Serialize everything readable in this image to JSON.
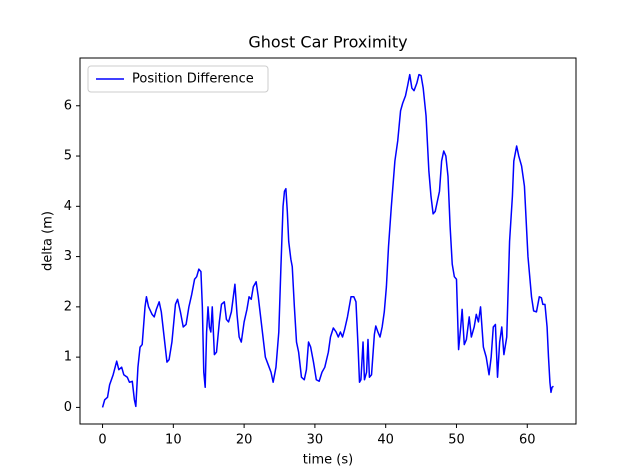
{
  "chart_data": {
    "type": "line",
    "title": "Ghost Car Proximity",
    "xlabel": "time (s)",
    "ylabel": "delta (m)",
    "x": [
      0,
      0.3,
      0.7,
      1,
      1.5,
      2,
      2.3,
      2.7,
      3,
      3.5,
      3.8,
      4.2,
      4.5,
      4.7,
      5,
      5.3,
      5.6,
      6,
      6.2,
      6.5,
      7,
      7.3,
      7.6,
      8,
      8.3,
      8.7,
      9.1,
      9.4,
      9.8,
      10.3,
      10.6,
      11,
      11.4,
      11.8,
      12.2,
      12.6,
      13,
      13.3,
      13.6,
      13.9,
      14.1,
      14.3,
      14.5,
      14.7,
      14.9,
      15.1,
      15.3,
      15.5,
      15.8,
      16.1,
      16.5,
      16.8,
      17.2,
      17.5,
      17.8,
      18.2,
      18.7,
      19,
      19.3,
      19.6,
      20,
      20.4,
      20.7,
      21,
      21.3,
      21.7,
      22,
      22.5,
      23,
      23.4,
      23.8,
      24.1,
      24.5,
      24.9,
      25.2,
      25.5,
      25.7,
      25.9,
      26.1,
      26.3,
      26.6,
      26.8,
      27.1,
      27.4,
      27.7,
      28.1,
      28.5,
      28.8,
      29.1,
      29.4,
      29.8,
      30.2,
      30.6,
      31,
      31.4,
      31.9,
      32.2,
      32.6,
      33,
      33.3,
      33.6,
      33.9,
      34.2,
      34.6,
      35.1,
      35.5,
      35.8,
      36.1,
      36.3,
      36.5,
      36.8,
      37,
      37.3,
      37.5,
      37.7,
      38,
      38.4,
      38.6,
      38.9,
      39.2,
      39.5,
      39.8,
      40.1,
      40.4,
      40.8,
      41.3,
      41.7,
      42.1,
      42.4,
      42.8,
      43.1,
      43.4,
      43.7,
      44,
      44.4,
      44.7,
      45,
      45.3,
      45.7,
      46.1,
      46.4,
      46.7,
      47,
      47.3,
      47.6,
      47.9,
      48.2,
      48.5,
      48.8,
      49.1,
      49.4,
      49.7,
      50,
      50.3,
      50.6,
      50.8,
      51.1,
      51.4,
      51.8,
      52.1,
      52.5,
      52.8,
      53.1,
      53.4,
      53.8,
      54.2,
      54.6,
      54.9,
      55.2,
      55.5,
      55.8,
      56.1,
      56.4,
      56.7,
      57.1,
      57.5,
      57.9,
      58.1,
      58.5,
      58.8,
      59.2,
      59.6,
      60.1,
      60.6,
      60.9,
      61.3,
      61.7,
      62,
      62.2,
      62.5,
      62.8,
      63,
      63.2,
      63.35,
      63.5,
      63.7
    ],
    "series": [
      {
        "name": "Position Difference",
        "color": "#0000ff",
        "values": [
          0,
          0.15,
          0.2,
          0.45,
          0.65,
          0.92,
          0.75,
          0.8,
          0.65,
          0.6,
          0.5,
          0.52,
          0.15,
          0.02,
          0.8,
          1.2,
          1.25,
          2.0,
          2.2,
          2.0,
          1.85,
          1.8,
          1.95,
          2.1,
          1.9,
          1.4,
          0.9,
          0.95,
          1.3,
          2.05,
          2.15,
          1.9,
          1.6,
          1.65,
          2.0,
          2.25,
          2.55,
          2.6,
          2.75,
          2.7,
          2.0,
          0.7,
          0.4,
          1.5,
          2.0,
          1.6,
          1.5,
          2.0,
          1.05,
          1.1,
          1.7,
          2.05,
          2.1,
          1.75,
          1.7,
          1.9,
          2.45,
          1.85,
          1.4,
          1.3,
          1.7,
          1.95,
          2.2,
          2.15,
          2.4,
          2.5,
          2.2,
          1.6,
          1.0,
          0.85,
          0.7,
          0.5,
          0.8,
          1.5,
          2.8,
          4.0,
          4.3,
          4.35,
          3.9,
          3.3,
          2.95,
          2.8,
          2.0,
          1.3,
          1.1,
          0.6,
          0.55,
          0.75,
          1.3,
          1.2,
          0.9,
          0.55,
          0.52,
          0.7,
          0.8,
          1.1,
          1.4,
          1.58,
          1.5,
          1.4,
          1.5,
          1.4,
          1.55,
          1.8,
          2.2,
          2.2,
          2.1,
          1.2,
          0.5,
          0.55,
          1.3,
          0.55,
          0.7,
          1.35,
          0.6,
          0.65,
          1.45,
          1.62,
          1.5,
          1.4,
          1.6,
          1.9,
          2.4,
          3.2,
          4.0,
          4.9,
          5.3,
          5.9,
          6.05,
          6.2,
          6.4,
          6.62,
          6.35,
          6.3,
          6.45,
          6.62,
          6.6,
          6.35,
          5.8,
          4.7,
          4.2,
          3.85,
          3.9,
          4.1,
          4.3,
          4.9,
          5.1,
          5.0,
          4.6,
          3.6,
          2.85,
          2.6,
          2.55,
          1.15,
          1.6,
          1.95,
          1.25,
          1.35,
          1.8,
          1.4,
          1.6,
          1.85,
          1.7,
          2.0,
          1.2,
          1.0,
          0.65,
          1.0,
          1.6,
          1.65,
          0.6,
          1.3,
          1.6,
          1.05,
          1.4,
          3.3,
          4.2,
          4.9,
          5.2,
          5.0,
          4.8,
          4.4,
          3.0,
          2.2,
          1.92,
          1.9,
          2.2,
          2.18,
          2.05,
          2.05,
          1.6,
          1.0,
          0.5,
          0.3,
          0.4,
          0.42
        ]
      }
    ],
    "xlim": [
      -3.185,
      66.885
    ],
    "xticks": [
      0,
      10,
      20,
      30,
      40,
      50,
      60
    ],
    "ylim": [
      -0.33,
      6.95
    ],
    "yticks": [
      0,
      1,
      2,
      3,
      4,
      5,
      6
    ],
    "legend": "upper left"
  }
}
